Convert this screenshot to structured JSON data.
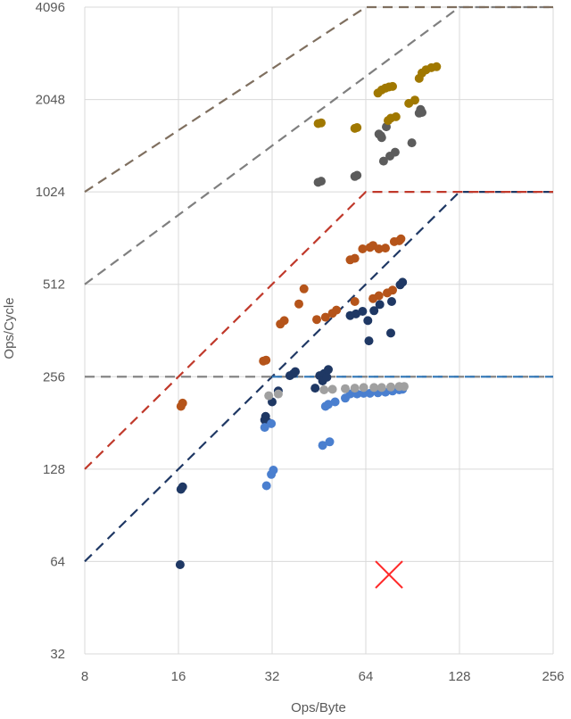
{
  "chart_data": {
    "type": "scatter",
    "title": "",
    "xlabel": "Ops/Byte",
    "ylabel": "Ops/Cycle",
    "x_scale": "log2",
    "y_scale": "log2",
    "xlim": [
      8,
      256
    ],
    "ylim": [
      32,
      4096
    ],
    "x_ticks": [
      8,
      16,
      32,
      64,
      128,
      256
    ],
    "y_ticks": [
      32,
      64,
      128,
      256,
      512,
      1024,
      2048,
      4096
    ],
    "grid": true,
    "legend": "none",
    "rooflines": [
      {
        "color": "#1f3864",
        "style": "dashed",
        "points": [
          [
            8,
            64
          ],
          [
            128,
            1024
          ],
          [
            256,
            1024
          ]
        ]
      },
      {
        "color": "#c0392b",
        "style": "dashed",
        "points": [
          [
            8,
            128
          ],
          [
            64,
            1024
          ],
          [
            256,
            1024
          ]
        ]
      },
      {
        "color": "#7f7f7f",
        "style": "dashed",
        "points": [
          [
            8,
            256
          ],
          [
            256,
            256
          ]
        ]
      },
      {
        "color": "#2e75b6",
        "style": "dashed",
        "points": [
          [
            32,
            256
          ],
          [
            256,
            256
          ]
        ]
      },
      {
        "color": "#7f7f7f",
        "style": "dashed",
        "points": [
          [
            8,
            512
          ],
          [
            128,
            4096
          ],
          [
            256,
            4096
          ]
        ]
      },
      {
        "color": "#7f6f5f",
        "style": "dashed",
        "points": [
          [
            8,
            1024
          ],
          [
            64,
            4096
          ],
          [
            256,
            4096
          ]
        ]
      }
    ],
    "series": [
      {
        "color": "#1f3864",
        "points": [
          [
            16.2,
            62.5
          ],
          [
            16.3,
            110
          ],
          [
            16.5,
            112
          ],
          [
            30.3,
            185
          ],
          [
            30.5,
            190
          ],
          [
            31,
            182
          ],
          [
            32,
            212
          ],
          [
            33.5,
            230
          ],
          [
            36.5,
            258
          ],
          [
            37.5,
            262
          ],
          [
            38,
            266
          ],
          [
            44,
            235
          ],
          [
            45.5,
            258
          ],
          [
            47,
            262
          ],
          [
            48.5,
            270
          ],
          [
            46.5,
            248
          ],
          [
            48,
            255
          ],
          [
            57,
            405
          ],
          [
            59.5,
            410
          ],
          [
            62.5,
            418
          ],
          [
            65,
            390
          ],
          [
            68,
            420
          ],
          [
            71,
            440
          ],
          [
            77.5,
            450
          ],
          [
            82.5,
            510
          ],
          [
            84,
            520
          ],
          [
            65.5,
            335
          ],
          [
            77,
            355
          ]
        ]
      },
      {
        "color": "#4a7fcf",
        "points": [
          [
            30.7,
            113
          ],
          [
            31.8,
            123
          ],
          [
            32.3,
            127
          ],
          [
            30.3,
            175
          ],
          [
            31.8,
            180
          ],
          [
            46.5,
            153
          ],
          [
            49,
            157
          ],
          [
            47.5,
            205
          ],
          [
            48.5,
            208
          ],
          [
            51,
            212
          ],
          [
            55,
            218
          ],
          [
            57,
            225
          ],
          [
            60,
            225
          ],
          [
            63,
            226
          ],
          [
            66,
            226
          ],
          [
            70,
            227
          ],
          [
            74,
            228
          ],
          [
            78,
            230
          ],
          [
            82,
            232
          ],
          [
            84,
            233
          ]
        ]
      },
      {
        "color": "#a0a0a0",
        "points": [
          [
            31.2,
            222
          ],
          [
            33.5,
            225
          ],
          [
            47,
            232
          ],
          [
            50,
            233
          ],
          [
            55,
            234
          ],
          [
            59,
            235
          ],
          [
            63,
            236
          ],
          [
            68,
            236
          ],
          [
            72,
            236
          ],
          [
            77,
            237
          ],
          [
            82,
            238
          ],
          [
            85,
            238
          ]
        ]
      },
      {
        "color": "#b5541a",
        "points": [
          [
            16.3,
            205
          ],
          [
            16.5,
            210
          ],
          [
            30,
            288
          ],
          [
            30.6,
            290
          ],
          [
            34,
            380
          ],
          [
            35,
            390
          ],
          [
            39,
            442
          ],
          [
            40.5,
            495
          ],
          [
            44.5,
            393
          ],
          [
            47.5,
            400
          ],
          [
            50,
            412
          ],
          [
            51.5,
            422
          ],
          [
            57,
            615
          ],
          [
            59,
            622
          ],
          [
            62.5,
            668
          ],
          [
            66,
            675
          ],
          [
            67.5,
            685
          ],
          [
            70.5,
            668
          ],
          [
            74,
            672
          ],
          [
            79,
            705
          ],
          [
            82,
            710
          ],
          [
            83,
            720
          ],
          [
            59,
            450
          ],
          [
            67.5,
            460
          ],
          [
            70.5,
            470
          ],
          [
            75,
            480
          ],
          [
            78,
            490
          ]
        ]
      },
      {
        "color": "#5c5c5c",
        "points": [
          [
            45,
            1100
          ],
          [
            46,
            1110
          ],
          [
            59,
            1150
          ],
          [
            60,
            1160
          ],
          [
            70.5,
            1580
          ],
          [
            71.5,
            1560
          ],
          [
            72,
            1540
          ],
          [
            74.5,
            1670
          ],
          [
            76.5,
            1340
          ],
          [
            79.5,
            1380
          ],
          [
            90,
            1480
          ],
          [
            95,
            1850
          ],
          [
            96,
            1900
          ],
          [
            97,
            1860
          ],
          [
            73,
            1290
          ]
        ]
      },
      {
        "color": "#a07800",
        "points": [
          [
            45,
            1710
          ],
          [
            46,
            1720
          ],
          [
            59,
            1650
          ],
          [
            60,
            1660
          ],
          [
            70,
            2150
          ],
          [
            72,
            2200
          ],
          [
            74,
            2230
          ],
          [
            76,
            2250
          ],
          [
            78,
            2260
          ],
          [
            75.5,
            1750
          ],
          [
            77,
            1780
          ],
          [
            80,
            1800
          ],
          [
            88,
            1990
          ],
          [
            92,
            2040
          ],
          [
            95,
            2400
          ],
          [
            97,
            2500
          ],
          [
            100,
            2560
          ],
          [
            104,
            2600
          ],
          [
            108,
            2620
          ]
        ]
      }
    ],
    "annotations": [
      {
        "type": "x-marker",
        "color": "#ff2a2a",
        "x": 76,
        "y": 58
      }
    ]
  }
}
